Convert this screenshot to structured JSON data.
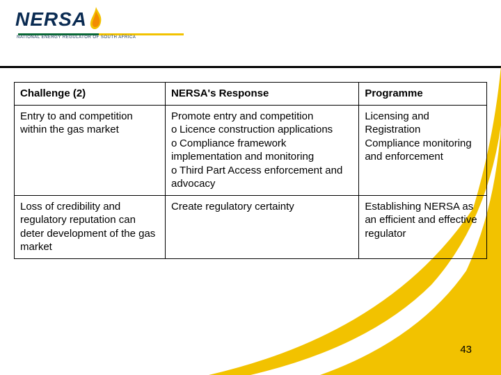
{
  "logo": {
    "name_text": "NERSA",
    "subtext": "NATIONAL ENERGY REGULATOR OF SOUTH AFRICA",
    "blue": "#0a2b52",
    "green": "#0a6b34",
    "yellow": "#f2c200",
    "orange": "#f28c00"
  },
  "band": {
    "yellow": "#f2c200",
    "white": "#ffffff"
  },
  "table": {
    "headers": [
      "Challenge (2)",
      "NERSA's Response",
      "Programme"
    ],
    "rows": [
      {
        "challenge": "Entry to and competition within the gas market",
        "response_lead": "Promote entry and competition",
        "response_bullets": [
          "Licence construction applications",
          "Compliance framework implementation and monitoring",
          "Third Part Access enforcement and advocacy"
        ],
        "programme": "Licensing and Registration\nCompliance monitoring and enforcement"
      },
      {
        "challenge": "Loss of credibility and regulatory reputation can deter development of the gas market",
        "response_lead": "Create regulatory certainty",
        "response_bullets": [],
        "programme": "Establishing NERSA as an efficient and effective regulator"
      }
    ]
  },
  "page_number": "43"
}
